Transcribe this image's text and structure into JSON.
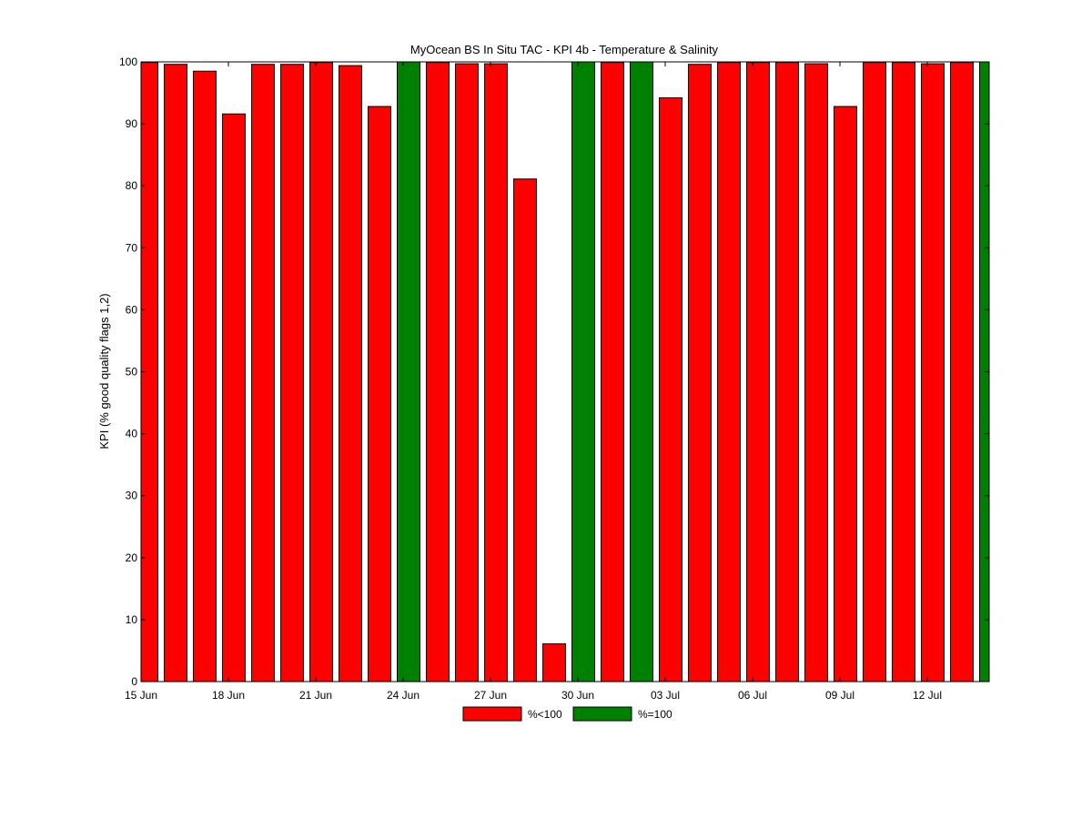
{
  "chart_data": {
    "type": "bar",
    "title": "MyOcean  BS In Situ TAC - KPI 4b - Temperature & Salinity",
    "ylabel": "KPI (% good quality flags 1,2)",
    "xlabel": "",
    "ylim": [
      0,
      100
    ],
    "xlim": [
      "15 Jun",
      "14 Jul"
    ],
    "yticks": [
      0,
      10,
      20,
      30,
      40,
      50,
      60,
      70,
      80,
      90,
      100
    ],
    "xticks": [
      "15 Jun",
      "18 Jun",
      "21 Jun",
      "24 Jun",
      "27 Jun",
      "30 Jun",
      "03 Jul",
      "06 Jul",
      "09 Jul",
      "12 Jul"
    ],
    "grid": false,
    "legend_position": "bottom-center",
    "categories": [
      "15 Jun",
      "16 Jun",
      "17 Jun",
      "18 Jun",
      "19 Jun",
      "20 Jun",
      "21 Jun",
      "22 Jun",
      "23 Jun",
      "24 Jun",
      "25 Jun",
      "26 Jun",
      "27 Jun",
      "28 Jun",
      "29 Jun",
      "30 Jun",
      "01 Jul",
      "02 Jul",
      "03 Jul",
      "04 Jul",
      "05 Jul",
      "06 Jul",
      "07 Jul",
      "08 Jul",
      "09 Jul",
      "10 Jul",
      "11 Jul",
      "12 Jul",
      "13 Jul",
      "14 Jul"
    ],
    "values": [
      99.9,
      99.6,
      98.5,
      91.6,
      99.6,
      99.6,
      99.9,
      99.4,
      92.8,
      100,
      99.9,
      99.7,
      99.7,
      81.1,
      6.1,
      100,
      99.9,
      100,
      94.2,
      99.6,
      99.9,
      99.9,
      99.9,
      99.7,
      92.8,
      99.9,
      99.9,
      99.7,
      99.9,
      100
    ],
    "series": [
      {
        "name": "%<100",
        "color": "#ff0000"
      },
      {
        "name": "%=100",
        "color": "#008000"
      }
    ]
  }
}
